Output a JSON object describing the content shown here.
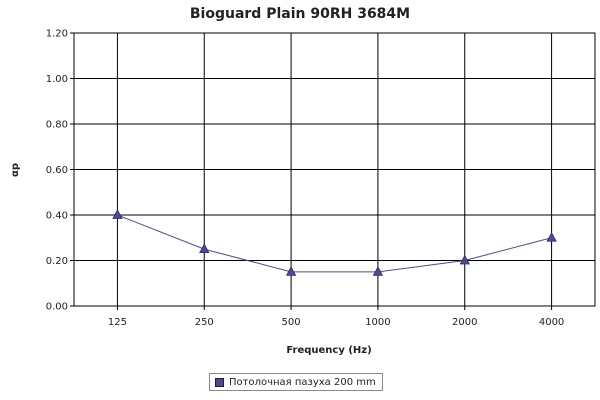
{
  "chart_data": {
    "type": "line",
    "title": "Bioguard Plain 90RH 3684M",
    "xlabel": "Frequency (Hz)",
    "ylabel": "αp",
    "categories": [
      "125",
      "250",
      "500",
      "1000",
      "2000",
      "4000"
    ],
    "series": [
      {
        "name": "Потолочная пазуха 200 mm",
        "values": [
          0.4,
          0.25,
          0.15,
          0.15,
          0.2,
          0.3
        ]
      }
    ],
    "yticks": [
      "0.00",
      "0.20",
      "0.40",
      "0.60",
      "0.80",
      "1.00",
      "1.20"
    ],
    "ylim": [
      0,
      1.2
    ],
    "grid": true,
    "legend_position": "bottom",
    "colors": {
      "series": "#4a4a9a",
      "grid": "#000000"
    }
  }
}
